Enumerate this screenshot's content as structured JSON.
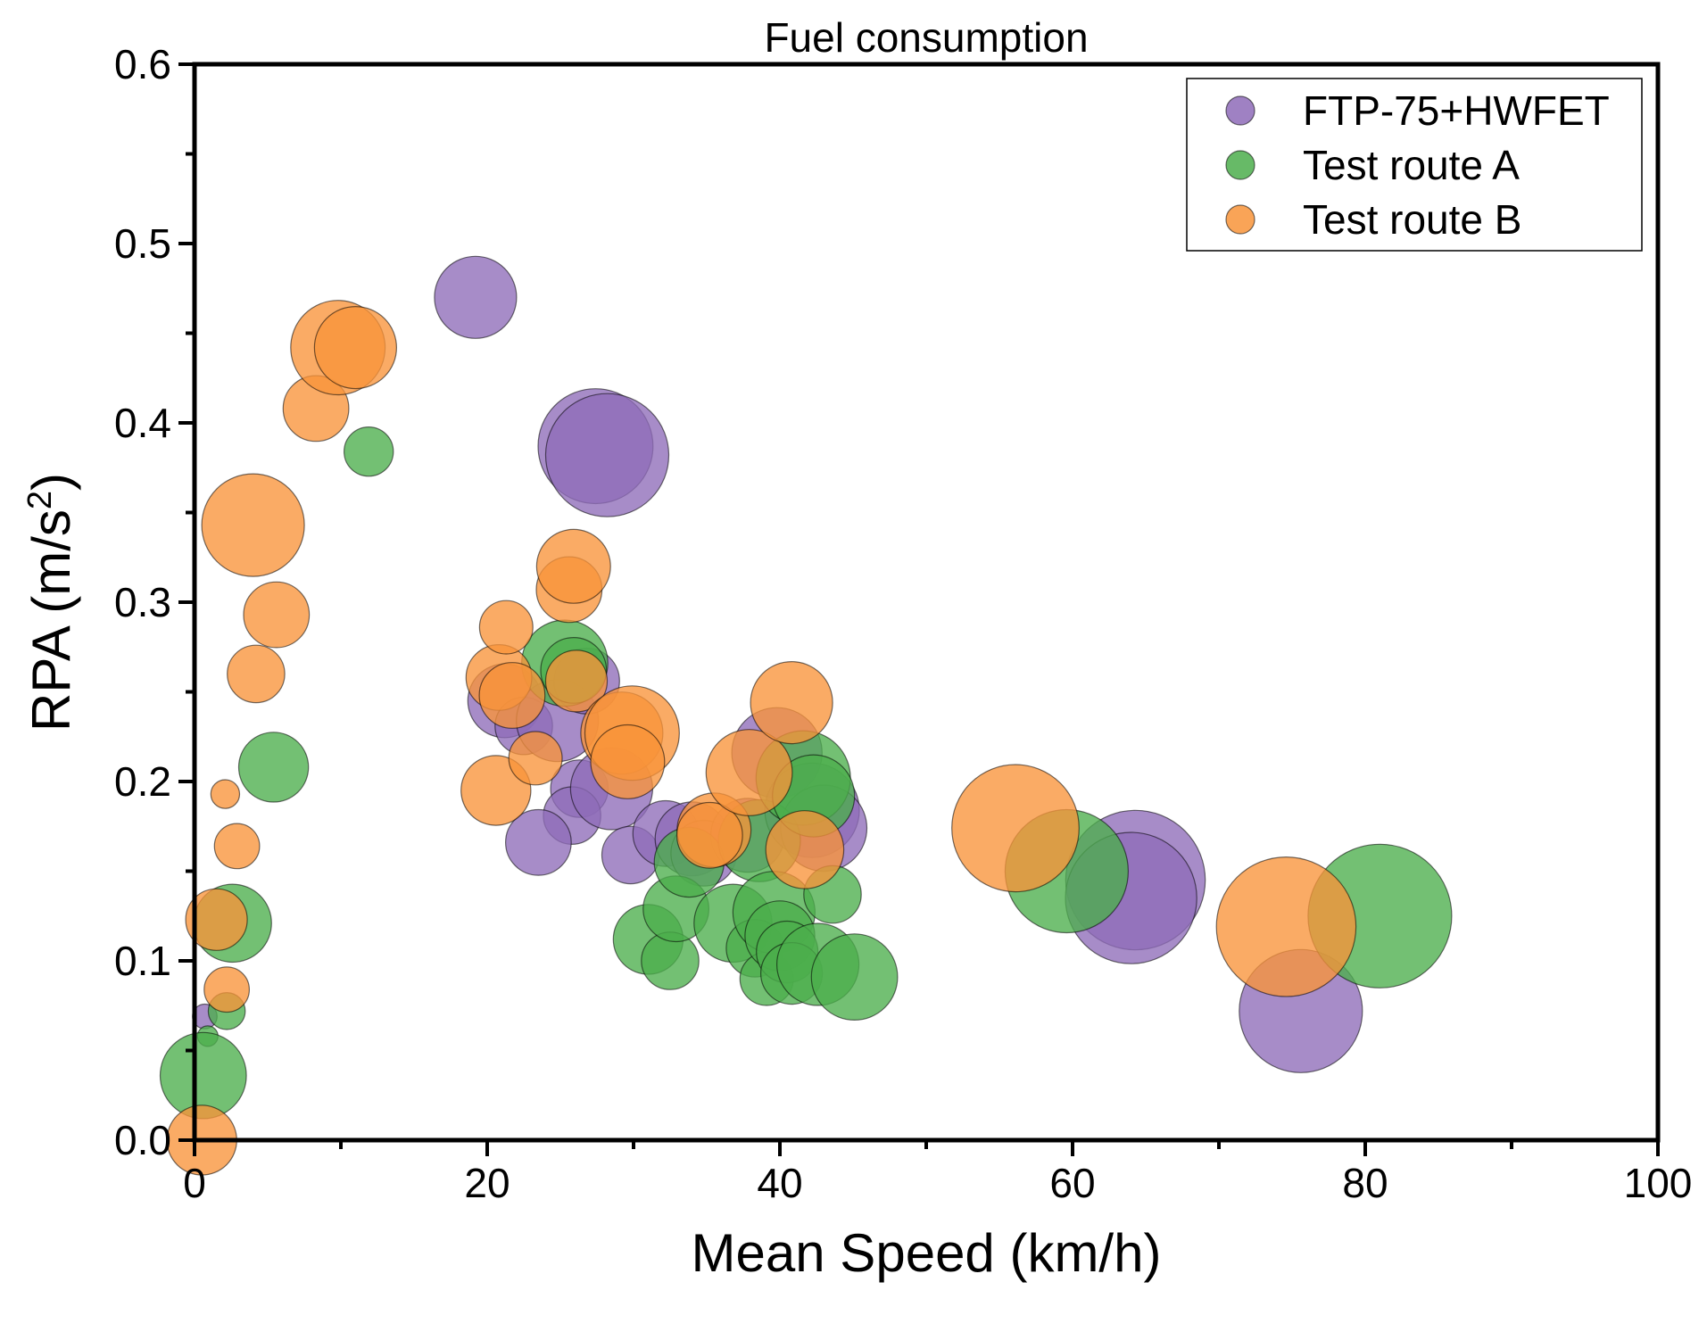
{
  "chart_data": {
    "type": "scatter",
    "title": "Fuel consumption",
    "xlabel": "Mean Speed (km/h)",
    "ylabel_text": "RPA (m/s",
    "ylabel_sup": "2",
    "ylabel_close": ")",
    "xlim": [
      0,
      100
    ],
    "ylim": [
      0,
      0.6
    ],
    "xticks": [
      0,
      20,
      40,
      60,
      80,
      100
    ],
    "xtick_labels": [
      "0",
      "20",
      "40",
      "60",
      "80",
      "100"
    ],
    "yticks": [
      0.0,
      0.1,
      0.2,
      0.3,
      0.4,
      0.5,
      0.6
    ],
    "ytick_labels": [
      "0.0",
      "0.1",
      "0.2",
      "0.3",
      "0.4",
      "0.5",
      "0.6"
    ],
    "legend_position": "top-right",
    "bubble_size_meaning": "fuel consumption (relative)",
    "series": [
      {
        "name": "FTP-75+HWFET",
        "color": "#8e6bb8",
        "points": [
          {
            "x": 0.7,
            "y": 0.069,
            "s": 0.6
          },
          {
            "x": 19.2,
            "y": 0.47,
            "s": 2.0
          },
          {
            "x": 27.4,
            "y": 0.387,
            "s": 2.8
          },
          {
            "x": 28.2,
            "y": 0.382,
            "s": 3.0
          },
          {
            "x": 21.2,
            "y": 0.245,
            "s": 1.8
          },
          {
            "x": 22.5,
            "y": 0.231,
            "s": 1.4
          },
          {
            "x": 24.8,
            "y": 0.234,
            "s": 2.0
          },
          {
            "x": 26.8,
            "y": 0.256,
            "s": 1.6
          },
          {
            "x": 26.3,
            "y": 0.196,
            "s": 1.4
          },
          {
            "x": 25.8,
            "y": 0.181,
            "s": 1.4
          },
          {
            "x": 23.5,
            "y": 0.166,
            "s": 1.6
          },
          {
            "x": 28.5,
            "y": 0.196,
            "s": 2.0
          },
          {
            "x": 29.8,
            "y": 0.159,
            "s": 1.4
          },
          {
            "x": 32.2,
            "y": 0.171,
            "s": 1.6
          },
          {
            "x": 34.0,
            "y": 0.168,
            "s": 1.8
          },
          {
            "x": 34.8,
            "y": 0.16,
            "s": 1.6
          },
          {
            "x": 37.8,
            "y": 0.17,
            "s": 1.8
          },
          {
            "x": 39.8,
            "y": 0.216,
            "s": 2.2
          },
          {
            "x": 42.2,
            "y": 0.184,
            "s": 2.3
          },
          {
            "x": 43.0,
            "y": 0.174,
            "s": 2.1
          },
          {
            "x": 64.3,
            "y": 0.145,
            "s": 3.4
          },
          {
            "x": 64.0,
            "y": 0.135,
            "s": 3.2
          },
          {
            "x": 75.6,
            "y": 0.072,
            "s": 3.0
          }
        ]
      },
      {
        "name": "Test route A",
        "color": "#4cae4c",
        "points": [
          {
            "x": 0.9,
            "y": 0.058,
            "s": 0.5
          },
          {
            "x": 0.6,
            "y": 0.036,
            "s": 2.1
          },
          {
            "x": 2.2,
            "y": 0.072,
            "s": 0.9
          },
          {
            "x": 2.6,
            "y": 0.121,
            "s": 1.9
          },
          {
            "x": 5.4,
            "y": 0.208,
            "s": 1.7
          },
          {
            "x": 11.9,
            "y": 0.384,
            "s": 1.2
          },
          {
            "x": 25.3,
            "y": 0.266,
            "s": 2.1
          },
          {
            "x": 25.9,
            "y": 0.262,
            "s": 1.6
          },
          {
            "x": 31.0,
            "y": 0.112,
            "s": 1.7
          },
          {
            "x": 32.5,
            "y": 0.1,
            "s": 1.4
          },
          {
            "x": 32.9,
            "y": 0.129,
            "s": 1.6
          },
          {
            "x": 33.8,
            "y": 0.155,
            "s": 1.7
          },
          {
            "x": 36.8,
            "y": 0.121,
            "s": 1.9
          },
          {
            "x": 38.3,
            "y": 0.107,
            "s": 1.4
          },
          {
            "x": 38.6,
            "y": 0.167,
            "s": 2.0
          },
          {
            "x": 39.1,
            "y": 0.09,
            "s": 1.3
          },
          {
            "x": 39.6,
            "y": 0.127,
            "s": 2.0
          },
          {
            "x": 40.0,
            "y": 0.114,
            "s": 1.7
          },
          {
            "x": 40.5,
            "y": 0.105,
            "s": 1.5
          },
          {
            "x": 40.8,
            "y": 0.093,
            "s": 1.5
          },
          {
            "x": 41.6,
            "y": 0.202,
            "s": 2.3
          },
          {
            "x": 42.3,
            "y": 0.192,
            "s": 2.0
          },
          {
            "x": 42.6,
            "y": 0.098,
            "s": 2.0
          },
          {
            "x": 43.6,
            "y": 0.137,
            "s": 1.4
          },
          {
            "x": 45.1,
            "y": 0.091,
            "s": 2.1
          },
          {
            "x": 59.6,
            "y": 0.15,
            "s": 3.0
          },
          {
            "x": 81.0,
            "y": 0.125,
            "s": 3.5
          }
        ]
      },
      {
        "name": "Test route B",
        "color": "#f8943a",
        "points": [
          {
            "x": 0.5,
            "y": 0.0,
            "s": 1.7
          },
          {
            "x": 1.5,
            "y": 0.123,
            "s": 1.5
          },
          {
            "x": 2.2,
            "y": 0.084,
            "s": 1.1
          },
          {
            "x": 2.1,
            "y": 0.193,
            "s": 0.7
          },
          {
            "x": 2.9,
            "y": 0.164,
            "s": 1.1
          },
          {
            "x": 4.0,
            "y": 0.343,
            "s": 2.5
          },
          {
            "x": 4.2,
            "y": 0.26,
            "s": 1.4
          },
          {
            "x": 5.6,
            "y": 0.293,
            "s": 1.6
          },
          {
            "x": 8.3,
            "y": 0.408,
            "s": 1.6
          },
          {
            "x": 9.8,
            "y": 0.442,
            "s": 2.3
          },
          {
            "x": 11.0,
            "y": 0.442,
            "s": 2.0
          },
          {
            "x": 20.6,
            "y": 0.195,
            "s": 1.7
          },
          {
            "x": 20.8,
            "y": 0.258,
            "s": 1.6
          },
          {
            "x": 21.3,
            "y": 0.286,
            "s": 1.3
          },
          {
            "x": 21.7,
            "y": 0.248,
            "s": 1.6
          },
          {
            "x": 23.3,
            "y": 0.213,
            "s": 1.3
          },
          {
            "x": 25.6,
            "y": 0.307,
            "s": 1.6
          },
          {
            "x": 25.9,
            "y": 0.32,
            "s": 1.8
          },
          {
            "x": 26.1,
            "y": 0.256,
            "s": 1.5
          },
          {
            "x": 29.2,
            "y": 0.227,
            "s": 2.0
          },
          {
            "x": 29.9,
            "y": 0.227,
            "s": 2.3
          },
          {
            "x": 29.6,
            "y": 0.211,
            "s": 1.8
          },
          {
            "x": 35.5,
            "y": 0.173,
            "s": 1.8
          },
          {
            "x": 35.2,
            "y": 0.17,
            "s": 1.6
          },
          {
            "x": 37.9,
            "y": 0.205,
            "s": 2.1
          },
          {
            "x": 40.8,
            "y": 0.244,
            "s": 2.0
          },
          {
            "x": 41.7,
            "y": 0.162,
            "s": 1.9
          },
          {
            "x": 56.1,
            "y": 0.174,
            "s": 3.1
          },
          {
            "x": 74.6,
            "y": 0.119,
            "s": 3.4
          }
        ]
      }
    ]
  }
}
